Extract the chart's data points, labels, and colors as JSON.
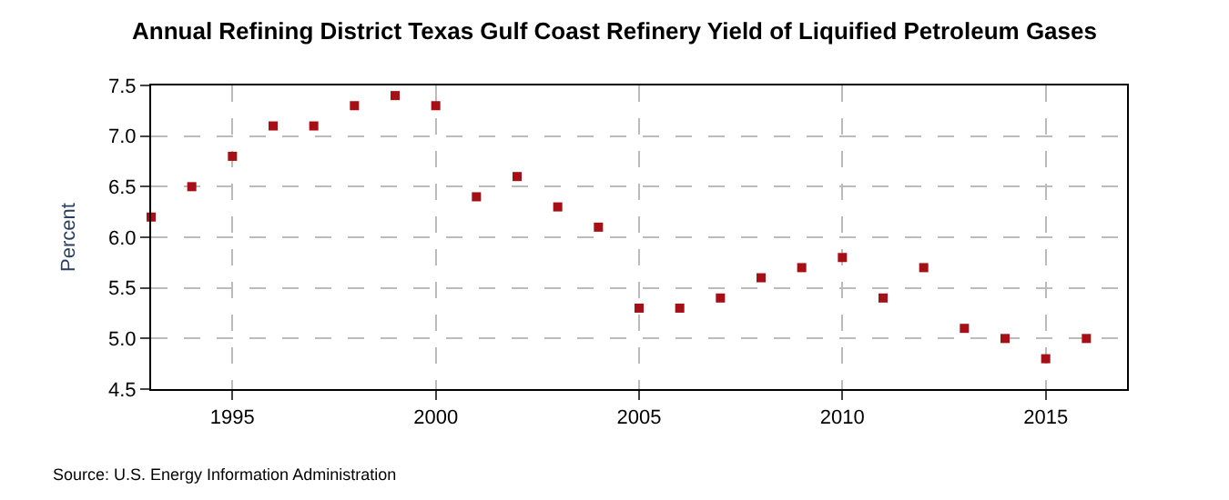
{
  "chart_data": {
    "type": "scatter",
    "title": "Annual Refining District Texas Gulf Coast Refinery Yield of Liquified Petroleum Gases",
    "ylabel": "Percent",
    "x": [
      1993,
      1994,
      1995,
      1996,
      1997,
      1998,
      1999,
      2000,
      2001,
      2002,
      2003,
      2004,
      2005,
      2006,
      2007,
      2008,
      2009,
      2010,
      2011,
      2012,
      2013,
      2014,
      2015,
      2016
    ],
    "series": [
      {
        "color": "#a50f15",
        "values": [
          6.2,
          6.5,
          6.8,
          7.1,
          7.1,
          7.3,
          7.4,
          7.3,
          6.4,
          6.6,
          6.3,
          6.1,
          5.3,
          5.3,
          5.4,
          5.6,
          5.7,
          5.8,
          5.4,
          5.7,
          5.1,
          5.0,
          4.8,
          5.0
        ]
      }
    ],
    "xlim": [
      1993,
      2017
    ],
    "xticks": [
      1995,
      2000,
      2005,
      2010,
      2015
    ],
    "ylim": [
      4.5,
      7.5
    ],
    "yticks": [
      {
        "value": 4.5,
        "label": "4.5"
      },
      {
        "value": 5,
        "label": "5.0"
      },
      {
        "value": 5.5,
        "label": "5.5"
      },
      {
        "value": 6,
        "label": "6.0"
      },
      {
        "value": 6.5,
        "label": "6.5"
      },
      {
        "value": 7,
        "label": "7.0"
      },
      {
        "value": 7.5,
        "label": "7.5"
      }
    ],
    "grid": true,
    "marker": "square",
    "annotations": [
      "Source: U.S. Energy Information Administration"
    ]
  }
}
